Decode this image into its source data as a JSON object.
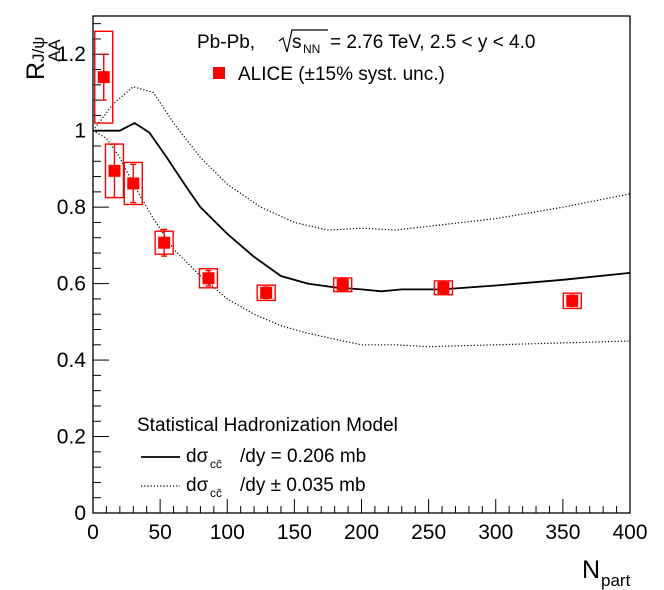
{
  "chart_data": {
    "type": "scatter",
    "xlabel": "N",
    "xlabel_sub": "part",
    "ylabel": "R",
    "ylabel_sup": "J/ψ",
    "ylabel_sub": "AA",
    "xlim": [
      0,
      400
    ],
    "ylim": [
      0,
      1.3
    ],
    "xticks": [
      0,
      50,
      100,
      150,
      200,
      250,
      300,
      350,
      400
    ],
    "yticks": [
      0,
      0.2,
      0.4,
      0.6,
      0.8,
      1,
      1.2
    ],
    "ytick_labels": [
      "0",
      "0.2",
      "0.4",
      "0.6",
      "0.8",
      "1",
      "1.2"
    ],
    "grid": false,
    "header": {
      "system": "Pb-Pb,",
      "energy_prefix": "s",
      "energy_sub": "NN",
      "energy_suffix": "= 2.76 TeV, 2.5 < y < 4.0"
    },
    "legend": {
      "label": "ALICE (±15% syst. unc.)",
      "model_title": "Statistical Hadronization Model",
      "central_prefix": "dσ",
      "central_sub": "cc̄",
      "central_suffix": "/dy = 0.206 mb",
      "band_prefix": "dσ",
      "band_sub": "cc̄",
      "band_suffix": "/dy ± 0.035 mb"
    },
    "series": [
      {
        "name": "ALICE",
        "style": "markers",
        "color": "#ff0000",
        "points": [
          {
            "x": 8,
            "y": 1.14,
            "stat": 0.06,
            "syst": 0.12
          },
          {
            "x": 16,
            "y": 0.895,
            "stat": 0.07,
            "syst": 0.07
          },
          {
            "x": 30,
            "y": 0.862,
            "stat": 0.05,
            "syst": 0.055
          },
          {
            "x": 53,
            "y": 0.707,
            "stat": 0.035,
            "syst": 0.03
          },
          {
            "x": 86,
            "y": 0.614,
            "stat": 0.02,
            "syst": 0.025
          },
          {
            "x": 129,
            "y": 0.576,
            "stat": 0.015,
            "syst": 0.02
          },
          {
            "x": 186,
            "y": 0.597,
            "stat": 0.015,
            "syst": 0.018
          },
          {
            "x": 261,
            "y": 0.589,
            "stat": 0.015,
            "syst": 0.018
          },
          {
            "x": 357,
            "y": 0.555,
            "stat": 0.015,
            "syst": 0.02
          }
        ]
      },
      {
        "name": "SHM central",
        "style": "solid",
        "color": "#000000",
        "x": [
          0,
          20,
          31,
          42,
          55,
          70,
          80,
          100,
          120,
          140,
          160,
          180,
          200,
          215,
          230,
          260,
          300,
          350,
          400
        ],
        "y": [
          1.0,
          1.0,
          1.02,
          0.995,
          0.93,
          0.85,
          0.8,
          0.73,
          0.67,
          0.62,
          0.6,
          0.59,
          0.585,
          0.58,
          0.585,
          0.585,
          0.595,
          0.61,
          0.628
        ]
      },
      {
        "name": "SHM upper",
        "style": "dotted",
        "color": "#000000",
        "x": [
          0,
          15,
          30,
          45,
          60,
          80,
          100,
          125,
          150,
          175,
          200,
          225,
          250,
          300,
          350,
          400
        ],
        "y": [
          1.0,
          1.07,
          1.115,
          1.1,
          1.02,
          0.93,
          0.86,
          0.8,
          0.76,
          0.74,
          0.745,
          0.74,
          0.75,
          0.77,
          0.8,
          0.835
        ]
      },
      {
        "name": "SHM lower",
        "style": "dotted",
        "color": "#000000",
        "x": [
          0,
          10,
          20,
          30,
          45,
          60,
          80,
          100,
          120,
          140,
          160,
          180,
          200,
          225,
          250,
          300,
          350,
          400
        ],
        "y": [
          1.0,
          0.98,
          0.93,
          0.86,
          0.77,
          0.69,
          0.62,
          0.56,
          0.52,
          0.49,
          0.47,
          0.455,
          0.44,
          0.44,
          0.435,
          0.44,
          0.445,
          0.45
        ]
      }
    ]
  }
}
